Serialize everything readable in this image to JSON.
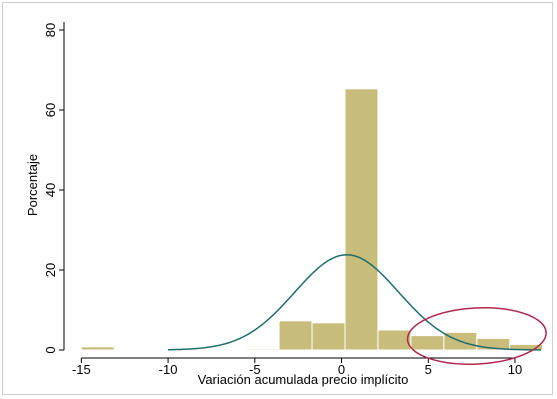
{
  "chart_data": {
    "type": "bar",
    "title": "",
    "xlabel": "Variación acumulada precio implícito",
    "ylabel": "Porcentaje",
    "xlim": [
      -16,
      11.5
    ],
    "ylim": [
      0,
      82
    ],
    "x_ticks": [
      -15,
      -10,
      -5,
      0,
      5,
      10
    ],
    "y_ticks": [
      0,
      20,
      40,
      60,
      80
    ],
    "grid": false,
    "bin_width": 1.9,
    "bars": [
      {
        "x0": -15.0,
        "x1": -13.1,
        "value": 0.8
      },
      {
        "x0": -13.1,
        "x1": -11.2,
        "value": 0.0
      },
      {
        "x0": -11.2,
        "x1": -9.3,
        "value": 0.0
      },
      {
        "x0": -9.3,
        "x1": -7.4,
        "value": 0.0
      },
      {
        "x0": -7.4,
        "x1": -5.5,
        "value": 0.0
      },
      {
        "x0": -5.5,
        "x1": -3.6,
        "value": 0.3
      },
      {
        "x0": -3.6,
        "x1": -1.7,
        "value": 7.3
      },
      {
        "x0": -1.7,
        "x1": 0.2,
        "value": 6.8
      },
      {
        "x0": 0.2,
        "x1": 2.1,
        "value": 65.3
      },
      {
        "x0": 2.1,
        "x1": 4.0,
        "value": 5.0
      },
      {
        "x0": 4.0,
        "x1": 5.9,
        "value": 3.6
      },
      {
        "x0": 5.9,
        "x1": 7.8,
        "value": 4.4
      },
      {
        "x0": 7.8,
        "x1": 9.7,
        "value": 2.9
      },
      {
        "x0": 9.7,
        "x1": 11.6,
        "value": 1.4
      }
    ],
    "normal_curve": {
      "mean": 0.3,
      "sd": 3.0,
      "peak": 23.8
    },
    "annotation": {
      "shape": "ellipse",
      "center": [
        7.8,
        3.5
      ],
      "rx_data": 4.0,
      "ry_data": 7.0
    },
    "colors": {
      "bar_fill": "#c9bd7c",
      "bar_edge": "#ffffff",
      "curve": "#1f6e6e",
      "annotation": "#b0274f"
    }
  }
}
